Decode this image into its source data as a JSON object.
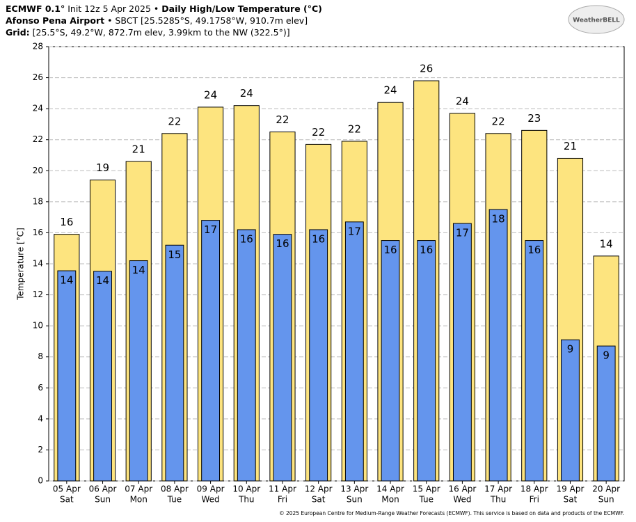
{
  "header": {
    "line1": [
      "ECMWF 0.1°",
      " Init 12z 5 Apr 2025 • ",
      "Daily High/Low Temperature (°C)"
    ],
    "line2": [
      "Afonso Pena Airport",
      " • SBCT [25.5285°S, 49.1758°W, 910.7m elev]"
    ],
    "line3": [
      "Grid:",
      " [25.5°S, 49.2°W, 872.7m elev, 3.99km to the NW (322.5°)]"
    ],
    "logo": "WeatherBELL"
  },
  "chart_data": {
    "type": "overlap-bar",
    "ylabel": "Temperature [°C]",
    "categories": [
      "05 Apr",
      "06 Apr",
      "07 Apr",
      "08 Apr",
      "09 Apr",
      "10 Apr",
      "11 Apr",
      "12 Apr",
      "13 Apr",
      "14 Apr",
      "15 Apr",
      "16 Apr",
      "17 Apr",
      "18 Apr",
      "19 Apr",
      "20 Apr"
    ],
    "weekdays": [
      "Sat",
      "Sun",
      "Mon",
      "Tue",
      "Wed",
      "Thu",
      "Fri",
      "Sat",
      "Sun",
      "Mon",
      "Tue",
      "Wed",
      "Thu",
      "Fri",
      "Sat",
      "Sun"
    ],
    "series": [
      {
        "color": "#fde47f",
        "values": [
          15.9,
          19.4,
          20.6,
          22.4,
          24.1,
          24.2,
          22.5,
          21.7,
          21.9,
          24.4,
          25.8,
          23.7,
          22.4,
          22.6,
          20.8,
          14.5
        ],
        "value_labels": [
          "16",
          "19",
          "21",
          "22",
          "24",
          "24",
          "22",
          "22",
          "22",
          "24",
          "26",
          "24",
          "22",
          "23",
          "21",
          "14"
        ]
      },
      {
        "color": "#6495ed",
        "values": [
          13.55,
          13.52,
          14.2,
          15.2,
          16.8,
          16.2,
          15.9,
          16.2,
          16.7,
          15.5,
          15.5,
          16.6,
          17.5,
          15.5,
          9.1,
          8.7
        ],
        "value_labels": [
          "14",
          "14",
          "14",
          "15",
          "17",
          "16",
          "16",
          "16",
          "17",
          "16",
          "16",
          "17",
          "18",
          "16",
          "9",
          "9"
        ]
      }
    ],
    "ylim": [
      0,
      28
    ],
    "yticks": [
      0,
      2,
      4,
      6,
      8,
      10,
      12,
      14,
      16,
      18,
      20,
      22,
      24,
      26,
      28
    ],
    "grid": true,
    "footer": "© 2025 European Centre for Medium-Range Weather Forecasts (ECMWF). This service is based on data and products of the ECMWF."
  }
}
